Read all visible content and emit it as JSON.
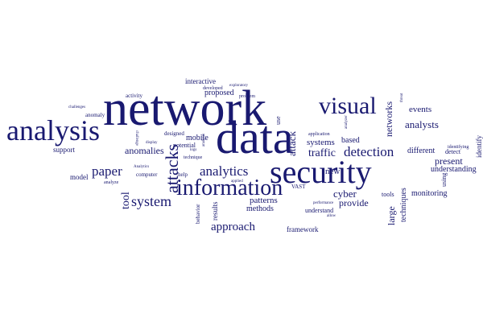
{
  "word_cloud": {
    "color": "#191970",
    "words": [
      "network",
      "data",
      "security",
      "analysis",
      "information",
      "visual",
      "attacks",
      "analytics",
      "detection",
      "paper",
      "system",
      "approach",
      "anomalies",
      "tool",
      "traffic",
      "cyber",
      "analysts",
      "networks",
      "events",
      "provide",
      "present",
      "different",
      "understanding",
      "large",
      "techniques",
      "monitoring",
      "patterns",
      "methods",
      "framework",
      "proposed",
      "interactive",
      "results",
      "systems",
      "based",
      "attack",
      "mobile",
      "potential",
      "designed",
      "anomaly",
      "support",
      "model",
      "computer",
      "behavior",
      "new",
      "tools",
      "understand",
      "detect",
      "identify",
      "identifying",
      "developed",
      "exploratory",
      "problem",
      "activity",
      "challenges",
      "challenge",
      "display",
      "logs",
      "technique",
      "applied",
      "VAST",
      "performance",
      "allow",
      "application",
      "analyze",
      "Analytics",
      "help",
      "use",
      "using",
      "analysis",
      "threat",
      "analyzer"
    ]
  }
}
